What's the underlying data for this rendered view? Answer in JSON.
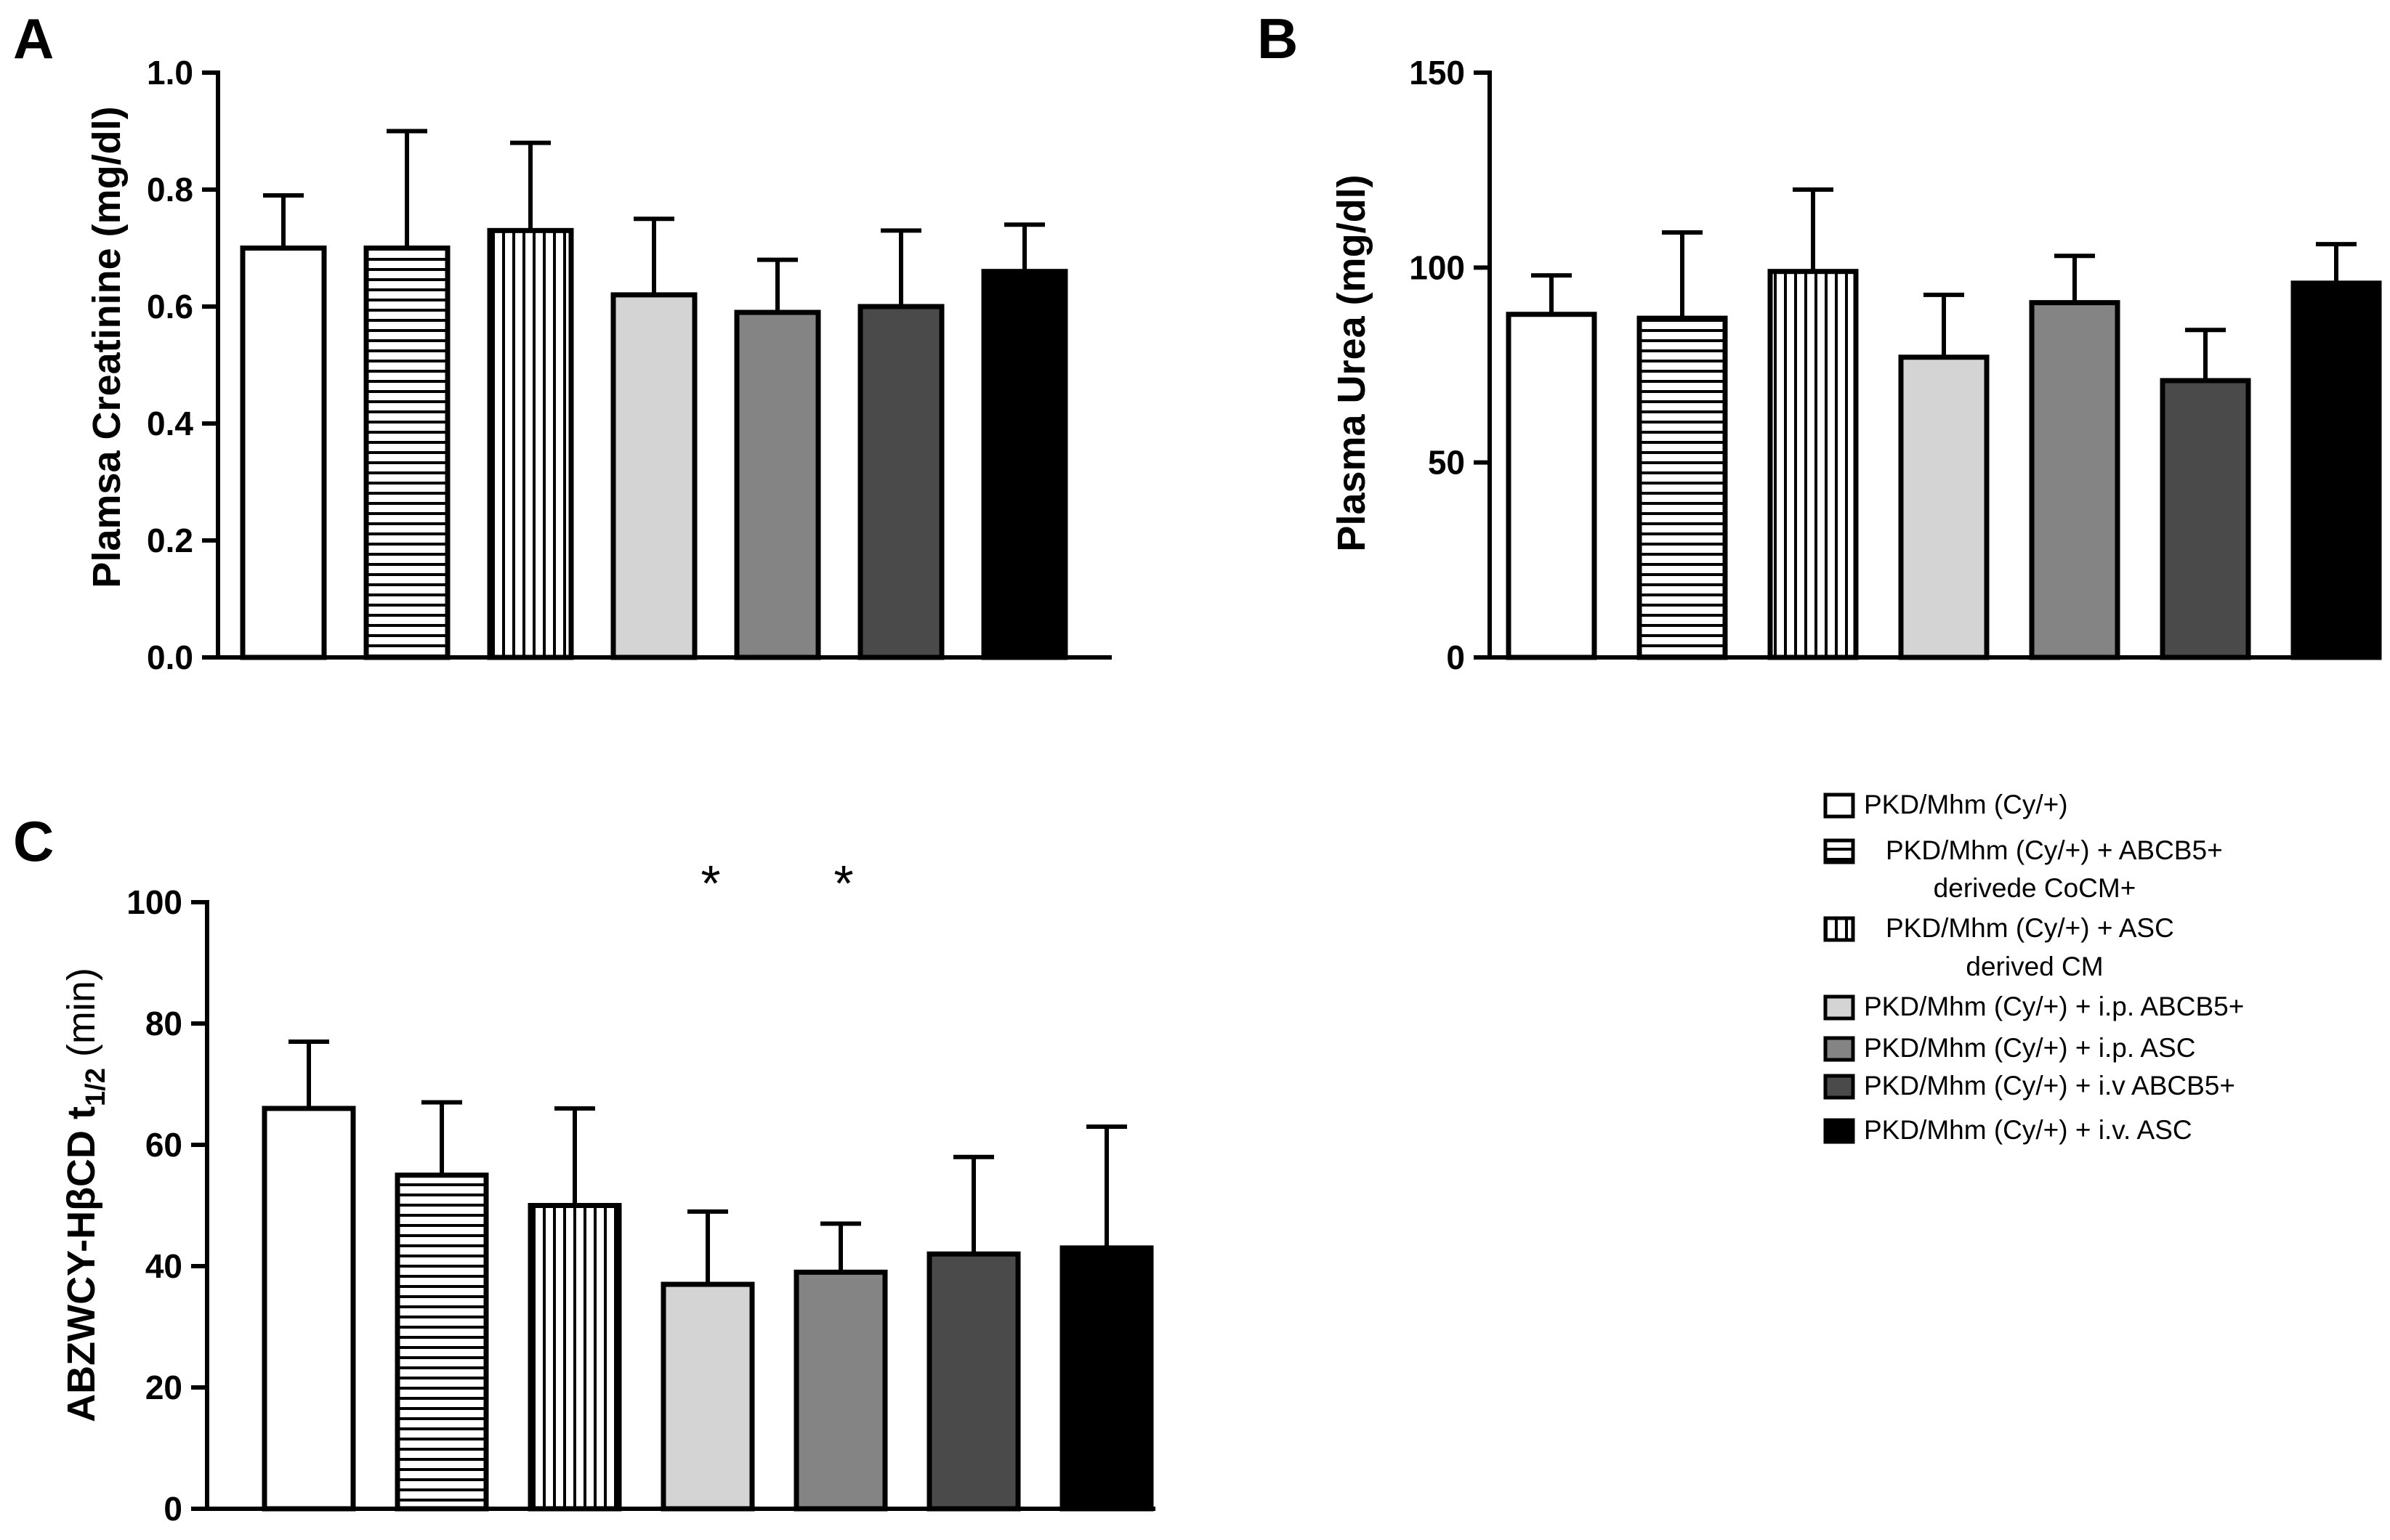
{
  "chart_data": [
    {
      "panel": "A",
      "type": "bar",
      "ylabel": "Plamsa Creatinine (mg/dl)",
      "ylim": [
        0,
        1.0
      ],
      "yticks": [
        "0.0",
        "0.2",
        "0.4",
        "0.6",
        "0.8",
        "1.0"
      ],
      "categories": [
        "PKD/Mhm (Cy/+)",
        "PKD/Mhm (Cy/+) + ABCB5+ derivede CoCM+",
        "PKD/Mhm (Cy/+) + ASC derived CM",
        "PKD/Mhm (Cy/+) + i.p. ABCB5+",
        "PKD/Mhm (Cy/+) + i.p. ASC",
        "PKD/Mhm (Cy/+) + i.v ABCB5+",
        "PKD/Mhm (Cy/+) + i.v. ASC"
      ],
      "values": [
        0.7,
        0.7,
        0.73,
        0.62,
        0.59,
        0.6,
        0.66
      ],
      "errors": [
        0.09,
        0.2,
        0.15,
        0.13,
        0.09,
        0.13,
        0.08
      ],
      "significance": [
        "",
        "",
        "",
        "",
        "",
        "",
        ""
      ]
    },
    {
      "panel": "B",
      "type": "bar",
      "ylabel": "Plasma Urea (mg/dl)",
      "ylim": [
        0,
        150
      ],
      "yticks": [
        "0",
        "50",
        "100",
        "150"
      ],
      "categories": [
        "PKD/Mhm (Cy/+)",
        "PKD/Mhm (Cy/+) + ABCB5+ derivede CoCM+",
        "PKD/Mhm (Cy/+) + ASC derived CM",
        "PKD/Mhm (Cy/+) + i.p. ABCB5+",
        "PKD/Mhm (Cy/+) + i.p. ASC",
        "PKD/Mhm (Cy/+) + i.v ABCB5+",
        "PKD/Mhm (Cy/+) + i.v. ASC"
      ],
      "values": [
        88,
        87,
        99,
        77,
        91,
        71,
        96
      ],
      "errors": [
        10,
        22,
        21,
        16,
        12,
        13,
        10
      ],
      "significance": [
        "",
        "",
        "",
        "",
        "",
        "",
        ""
      ]
    },
    {
      "panel": "C",
      "type": "bar",
      "ylabel_main": "ABZWCY-HβCD  t",
      "ylabel_sub": "1/2",
      "ylabel_unit": " (min)",
      "ylim": [
        0,
        100
      ],
      "yticks": [
        "0",
        "20",
        "40",
        "60",
        "80",
        "100"
      ],
      "categories": [
        "PKD/Mhm (Cy/+)",
        "PKD/Mhm (Cy/+) + ABCB5+ derivede CoCM+",
        "PKD/Mhm (Cy/+) + ASC derived CM",
        "PKD/Mhm (Cy/+) + i.p. ABCB5+",
        "PKD/Mhm (Cy/+) + i.p. ASC",
        "PKD/Mhm (Cy/+) + i.v ABCB5+",
        "PKD/Mhm (Cy/+) + i.v. ASC"
      ],
      "values": [
        66,
        55,
        50,
        37,
        39,
        42,
        43
      ],
      "errors": [
        11,
        12,
        16,
        12,
        8,
        16,
        20
      ],
      "significance": [
        "",
        "",
        "",
        "*",
        "*",
        "",
        ""
      ]
    }
  ],
  "legend": [
    {
      "label": "PKD/Mhm (Cy/+)",
      "label2": "",
      "pattern": "white"
    },
    {
      "label": "PKD/Mhm (Cy/+) + ABCB5+",
      "label2": "derivede CoCM+",
      "pattern": "hstripes"
    },
    {
      "label": "PKD/Mhm (Cy/+) + ASC",
      "label2": "derived CM",
      "pattern": "vstripes"
    },
    {
      "label": "PKD/Mhm (Cy/+) + i.p. ABCB5+",
      "label2": "",
      "pattern": "lightgray"
    },
    {
      "label": "PKD/Mhm (Cy/+) + i.p. ASC",
      "label2": "",
      "pattern": "gray"
    },
    {
      "label": "PKD/Mhm (Cy/+) + i.v ABCB5+",
      "label2": "",
      "pattern": "darkgray"
    },
    {
      "label": "PKD/Mhm (Cy/+) + i.v. ASC",
      "label2": "",
      "pattern": "black"
    }
  ],
  "colors": {
    "white": "#ffffff",
    "lightgray": "#d4d4d4",
    "gray": "#848484",
    "darkgray": "#4a4a4a",
    "black": "#000000",
    "stroke": "#000000"
  }
}
